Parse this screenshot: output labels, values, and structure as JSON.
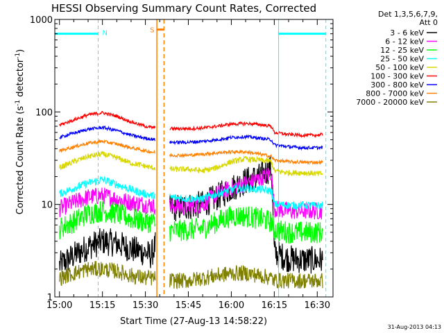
{
  "chart_data": {
    "type": "line",
    "title": "HESSI Observing Summary Count Rates, Corrected",
    "xlabel": "Start Time (27-Aug-13 14:58:22)",
    "ylabel_main": "Corrected Count Rate (s",
    "ylabel_sup1": "-1",
    "ylabel_mid": " detector",
    "ylabel_sup2": "-1",
    "ylabel_end": ")",
    "y_scale": "log",
    "ylim": [
      1,
      1000
    ],
    "xlim_minutes": [
      -1.63,
      95.5
    ],
    "x_ticks": [
      {
        "min": 0,
        "label": "15:00"
      },
      {
        "min": 15,
        "label": "15:15"
      },
      {
        "min": 30,
        "label": "15:30"
      },
      {
        "min": 45,
        "label": "15:45"
      },
      {
        "min": 60,
        "label": "16:00"
      },
      {
        "min": 75,
        "label": "16:15"
      },
      {
        "min": 90,
        "label": "16:30"
      }
    ],
    "y_ticks": [
      {
        "value": 1,
        "label": "1"
      },
      {
        "value": 10,
        "label": "10"
      },
      {
        "value": 100,
        "label": "100"
      },
      {
        "value": 1000,
        "label": "1000"
      }
    ],
    "legend_header_1": "Det 1,3,5,6,7,9,",
    "legend_header_2": "Att 0",
    "legend_position": "top-right",
    "gap_minutes": [
      33.5,
      38.5
    ],
    "series": [
      {
        "name": "3 - 6 keV",
        "color": "#000000",
        "x": [
          0,
          5,
          10,
          15,
          20,
          25,
          30,
          32,
          38.5,
          45,
          50,
          55,
          60,
          65,
          70,
          74,
          75,
          80,
          85,
          90,
          92
        ],
        "values": [
          2.2,
          2.8,
          3.5,
          4.0,
          3.8,
          3.3,
          3.0,
          2.8,
          9.0,
          9.5,
          10.0,
          12.0,
          15.0,
          18.0,
          20.0,
          25.0,
          3.0,
          2.6,
          2.5,
          2.5,
          2.5
        ]
      },
      {
        "name": "6 - 12 keV",
        "color": "#ff00ff",
        "x": [
          0,
          5,
          10,
          15,
          20,
          25,
          30,
          32,
          38.5,
          45,
          50,
          55,
          60,
          65,
          70,
          74,
          75,
          80,
          85,
          90,
          92
        ],
        "values": [
          9.0,
          10.5,
          12.0,
          12.5,
          11.5,
          10.5,
          10.0,
          9.8,
          9.5,
          9.5,
          10.0,
          13.0,
          15.0,
          17.0,
          19.0,
          22.0,
          9.0,
          8.5,
          8.5,
          8.5,
          8.5
        ]
      },
      {
        "name": "12 - 25 keV",
        "color": "#00ff00",
        "x": [
          0,
          5,
          10,
          15,
          20,
          25,
          30,
          32,
          38.5,
          45,
          50,
          55,
          60,
          65,
          70,
          74,
          75,
          80,
          85,
          90,
          92
        ],
        "values": [
          5.5,
          6.5,
          8.0,
          8.5,
          8.0,
          7.0,
          6.5,
          6.5,
          5.2,
          5.3,
          5.5,
          6.5,
          7.5,
          7.5,
          7.0,
          6.5,
          5.3,
          5.0,
          5.0,
          5.0,
          5.0
        ]
      },
      {
        "name": "25 - 50 keV",
        "color": "#00ffff",
        "x": [
          0,
          5,
          10,
          15,
          20,
          25,
          30,
          32,
          38.5,
          45,
          50,
          55,
          60,
          65,
          70,
          74,
          75,
          80,
          85,
          90,
          92
        ],
        "values": [
          13.0,
          15.0,
          17.0,
          18.5,
          16.5,
          14.5,
          13.0,
          12.5,
          12.0,
          11.5,
          11.5,
          13.0,
          14.5,
          15.0,
          14.5,
          14.0,
          10.0,
          9.8,
          9.8,
          9.7,
          9.7
        ]
      },
      {
        "name": "50 - 100 keV",
        "color": "#d8d800",
        "x": [
          0,
          5,
          10,
          15,
          20,
          25,
          30,
          32,
          38.5,
          45,
          50,
          55,
          60,
          65,
          70,
          74,
          75,
          80,
          85,
          90,
          92
        ],
        "values": [
          25.0,
          29.0,
          33.0,
          35.0,
          32.0,
          28.0,
          26.0,
          25.0,
          24.0,
          24.0,
          23.0,
          25.0,
          29.0,
          31.0,
          30.0,
          29.0,
          23.0,
          22.0,
          22.0,
          21.5,
          21.5
        ]
      },
      {
        "name": "100 - 300 keV",
        "color": "#ff0000",
        "x": [
          0,
          5,
          10,
          15,
          20,
          25,
          30,
          32,
          38.5,
          45,
          50,
          55,
          60,
          65,
          70,
          74,
          75,
          80,
          85,
          90,
          92
        ],
        "values": [
          72.0,
          82.0,
          93.0,
          98.0,
          90.0,
          78.0,
          70.0,
          68.0,
          66.0,
          66.0,
          67.0,
          70.0,
          74.0,
          75.0,
          73.0,
          70.0,
          60.0,
          57.0,
          56.0,
          56.0,
          57.0
        ]
      },
      {
        "name": "300 - 800 keV",
        "color": "#0000ff",
        "x": [
          0,
          5,
          10,
          15,
          20,
          25,
          30,
          32,
          38.5,
          45,
          50,
          55,
          60,
          65,
          70,
          74,
          75,
          80,
          85,
          90,
          92
        ],
        "values": [
          53.0,
          59.0,
          65.0,
          68.0,
          63.0,
          56.0,
          52.0,
          51.0,
          47.0,
          47.0,
          48.0,
          50.0,
          53.0,
          54.0,
          52.0,
          50.0,
          44.0,
          42.0,
          41.0,
          41.0,
          41.0
        ]
      },
      {
        "name": "800 - 7000 keV",
        "color": "#ff8000",
        "x": [
          0,
          5,
          10,
          15,
          20,
          25,
          30,
          32,
          38.5,
          45,
          50,
          55,
          60,
          65,
          70,
          74,
          75,
          80,
          85,
          90,
          92
        ],
        "values": [
          38.0,
          42.0,
          46.0,
          48.0,
          45.0,
          41.0,
          38.0,
          37.0,
          34.0,
          34.0,
          35.0,
          36.0,
          37.0,
          37.0,
          35.0,
          33.0,
          30.0,
          29.0,
          28.5,
          28.5,
          28.5
        ]
      },
      {
        "name": "7000 - 20000 keV",
        "color": "#808000",
        "x": [
          0,
          5,
          10,
          15,
          20,
          25,
          30,
          32,
          38.5,
          45,
          50,
          55,
          60,
          65,
          70,
          74,
          75,
          80,
          85,
          90,
          92
        ],
        "values": [
          1.6,
          1.8,
          2.0,
          2.0,
          1.9,
          1.7,
          1.6,
          1.6,
          1.5,
          1.5,
          1.6,
          1.7,
          1.8,
          1.8,
          1.7,
          1.6,
          1.5,
          1.5,
          1.5,
          1.5,
          1.5
        ]
      }
    ],
    "annotations": {
      "night_label": "N",
      "saa_label": "S",
      "night_level": 700,
      "night_intervals": [
        [
          -1.63,
          13.5
        ],
        [
          76.5,
          93.0
        ]
      ],
      "saa_interval": [
        34.0,
        36.5
      ]
    }
  },
  "footer": {
    "timestamp": "31-Aug-2013 04:13"
  }
}
